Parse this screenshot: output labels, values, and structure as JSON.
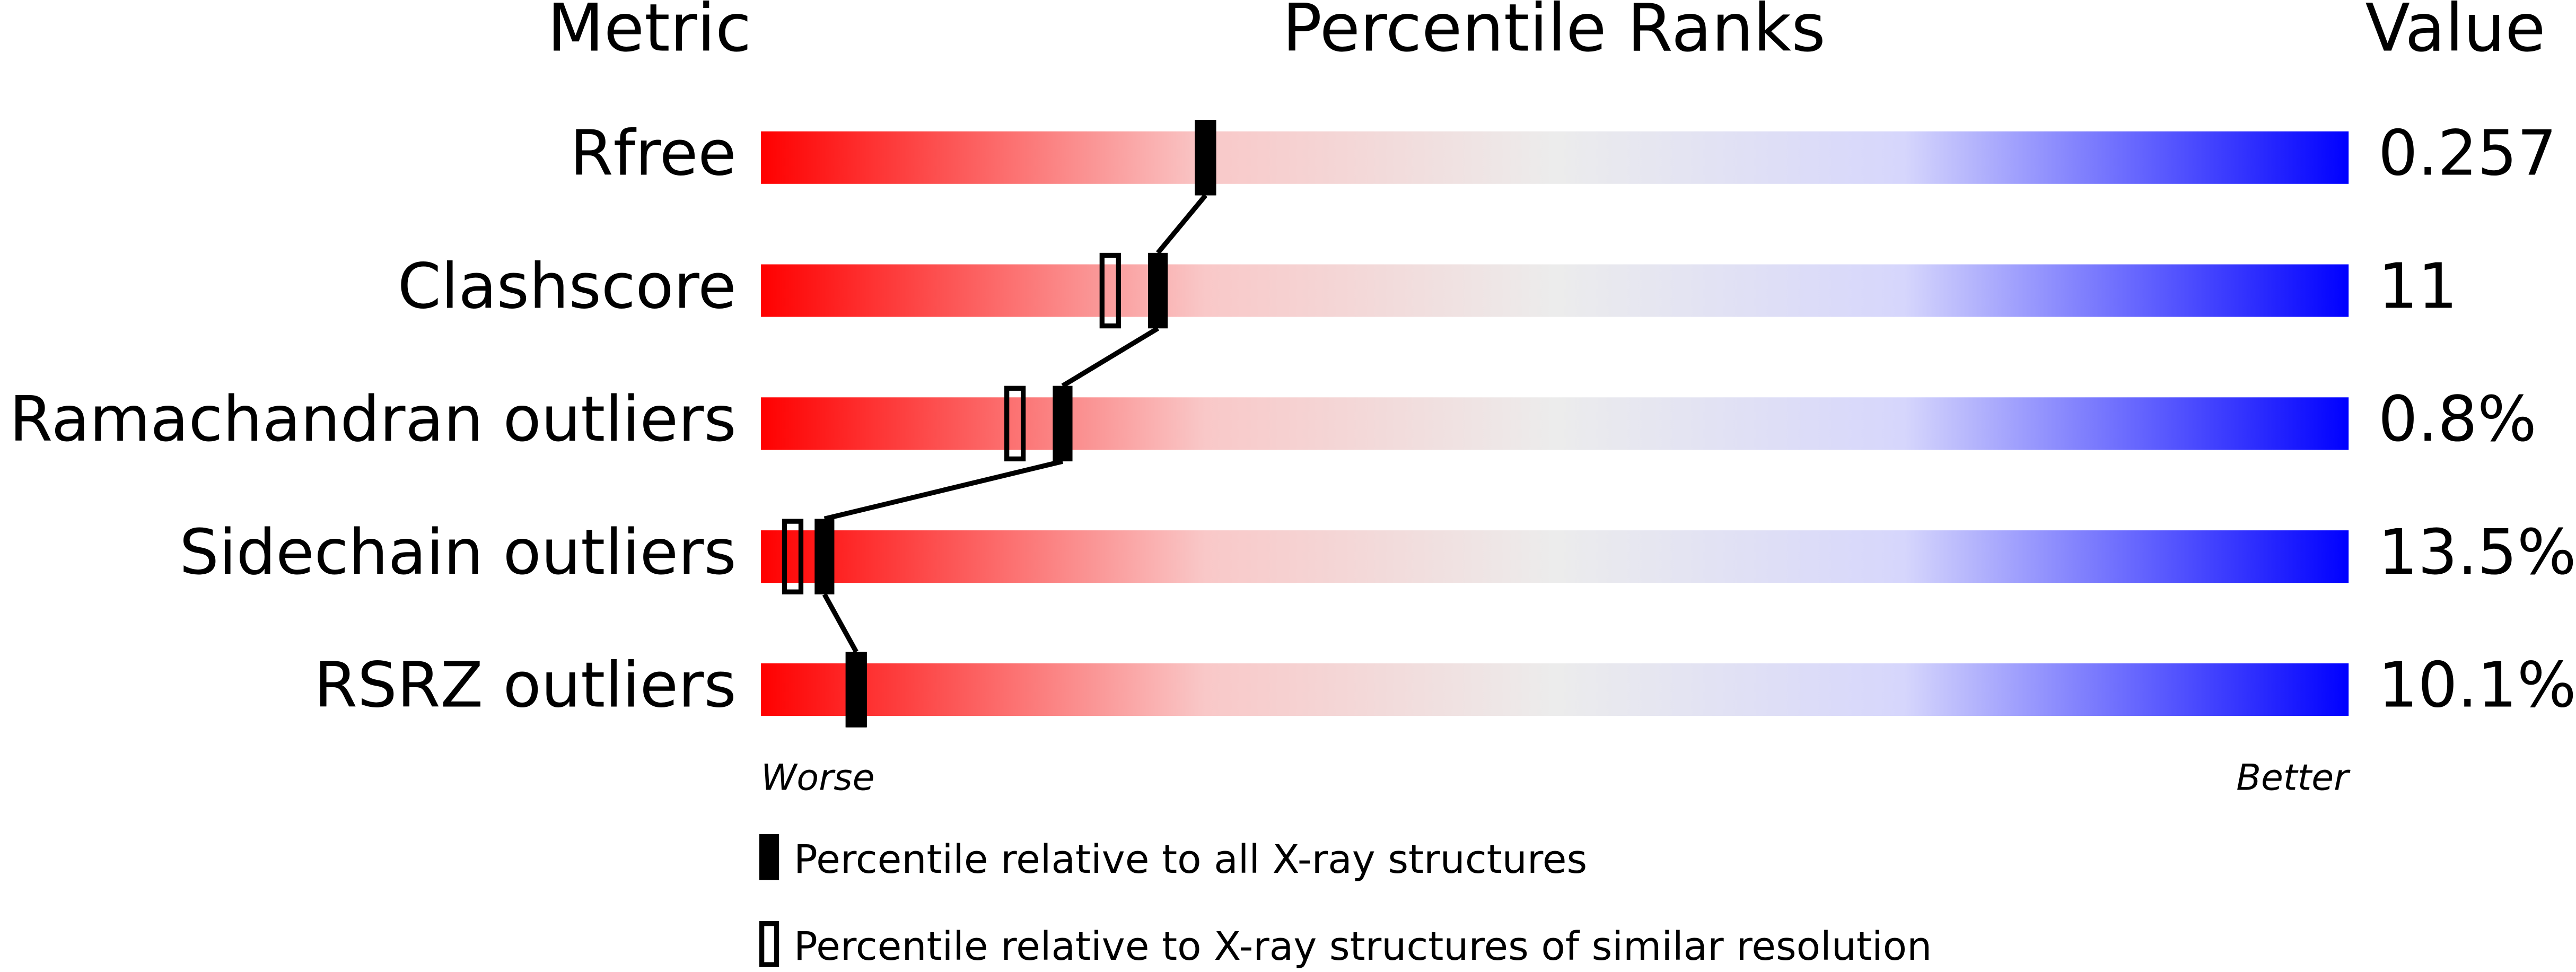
{
  "chart_data": {
    "type": "percentile",
    "headers": {
      "metric": "Metric",
      "ranks": "Percentile Ranks",
      "value": "Value"
    },
    "categories": [
      "Rfree",
      "Clashscore",
      "Ramachandran outliers",
      "Sidechain outliers",
      "RSRZ outliers"
    ],
    "metric_values": [
      "0.257",
      "11",
      "0.8%",
      "13.5%",
      "10.1%"
    ],
    "series": [
      {
        "name": "Percentile relative to all X-ray structures",
        "color": "#000000",
        "filled": true,
        "values": [
          28,
          25,
          19,
          4,
          6
        ]
      },
      {
        "name": "Percentile relative to X-ray structures of similar resolution",
        "color": "#000000",
        "filled": false,
        "values": [
          28,
          22,
          16,
          2,
          6
        ]
      }
    ],
    "xlim": [
      0,
      100
    ],
    "axis_labels": {
      "low": "Worse",
      "high": "Better"
    }
  }
}
